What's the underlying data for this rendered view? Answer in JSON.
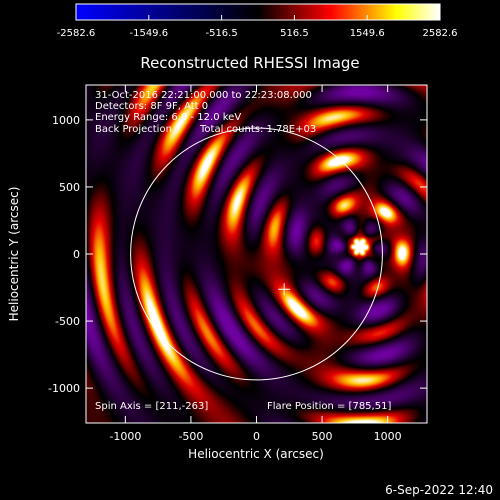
{
  "chart_data": {
    "type": "heatmap",
    "title": "Reconstructed RHESSI Image",
    "xlabel": "Heliocentric X (arcsec)",
    "ylabel": "Heliocentric Y (arcsec)",
    "xlim": [
      -1300,
      1300
    ],
    "ylim": [
      -1260,
      1260
    ],
    "x_ticks": [
      -1000,
      -500,
      0,
      500,
      1000
    ],
    "y_ticks": [
      -1000,
      -500,
      0,
      500,
      1000
    ],
    "colorbar": {
      "min": -2582.6,
      "max": 2582.6,
      "ticks": [
        -2582.6,
        -1549.6,
        -516.5,
        516.5,
        1549.6,
        2582.6
      ],
      "colormap": [
        "#0000ff",
        "#000000",
        "#ff0000",
        "#ffff00",
        "#ffffff"
      ]
    },
    "annotations": {
      "time_range": "31-Oct-2016 22:21:00.000 to 22:23:08.000",
      "detectors": "Detectors: 8F 9F, Att 0",
      "energy": "Energy Range: 6.0 - 12.0 keV",
      "method": "Back Projection",
      "total_counts": "Total counts: 1.78E+03",
      "spin_axis": "Spin Axis = [211,-263]",
      "flare_position": "Flare Position = [785,51]"
    },
    "spin_axis": [
      211,
      -263
    ],
    "flare_position": [
      785,
      51
    ],
    "solar_disk": {
      "center": [
        0,
        0
      ],
      "radius": 960
    }
  },
  "footer": {
    "date": "6-Sep-2022 12:40"
  },
  "colors": {
    "background": "#000000",
    "foreground": "#ffffff"
  }
}
